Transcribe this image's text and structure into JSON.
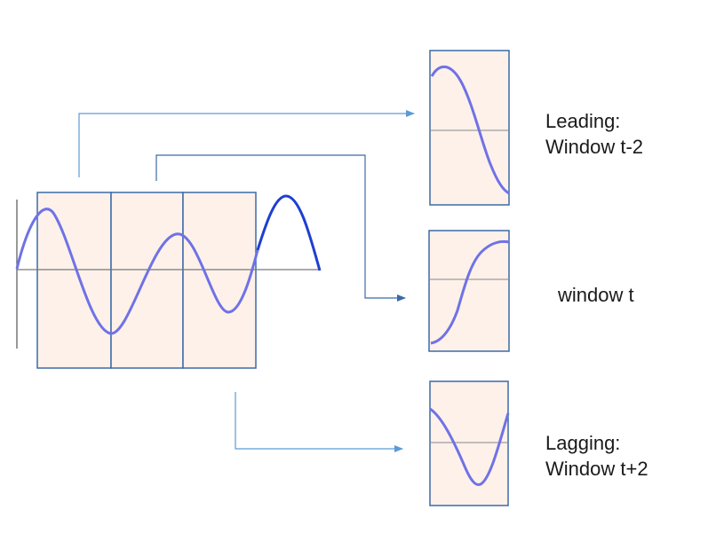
{
  "labels": {
    "leading": {
      "line1": "Leading:",
      "line2": "Window t-2"
    },
    "current": {
      "line1": "window t"
    },
    "lagging": {
      "line1": "Lagging:",
      "line2": "Window t+2"
    }
  },
  "colors": {
    "window_fill": "#fdf1ea",
    "window_border": "#3b6aa8",
    "wave_dark": "#1f3fd0",
    "wave_light": "#6f72e6",
    "axis": "#777777",
    "arrow": "#5b9bd5",
    "arrow_dark": "#3b6aa8"
  }
}
